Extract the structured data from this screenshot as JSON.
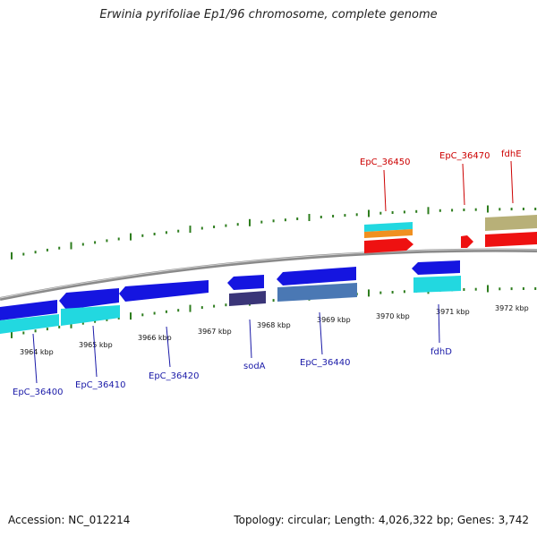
{
  "title": "Erwinia pyrifoliae Ep1/96 chromosome, complete genome",
  "footer": {
    "accession": "Accession: NC_012214",
    "summary": "Topology: circular; Length: 4,026,322 bp; Genes: 3,742"
  },
  "colors": {
    "backbone": "#8a8a8a",
    "tick": "#2e7d1e",
    "reverse_gene_label": "#1a1aa8",
    "forward_gene_label": "#cc0000",
    "blue_gene": "#1515e0",
    "cyan_gene": "#22d8e0",
    "red_gene": "#ee1111",
    "orange_gene": "#f09020",
    "olive_gene": "#b8b078",
    "indigo_gene": "#3a3578",
    "steelblue_gene": "#4a78b4"
  },
  "scale": {
    "tick_labels": [
      "3964 kbp",
      "3965 kbp",
      "3966 kbp",
      "3967 kbp",
      "3968 kbp",
      "3969 kbp",
      "3970 kbp",
      "3971 kbp",
      "3972 kbp"
    ]
  },
  "genes": {
    "reverse_strand": [
      "EpC_36400",
      "EpC_36410",
      "EpC_36420",
      "sodA",
      "EpC_36440",
      "fdhD"
    ],
    "forward_strand": [
      "EpC_36450",
      "EpC_36470",
      "fdhE"
    ]
  }
}
